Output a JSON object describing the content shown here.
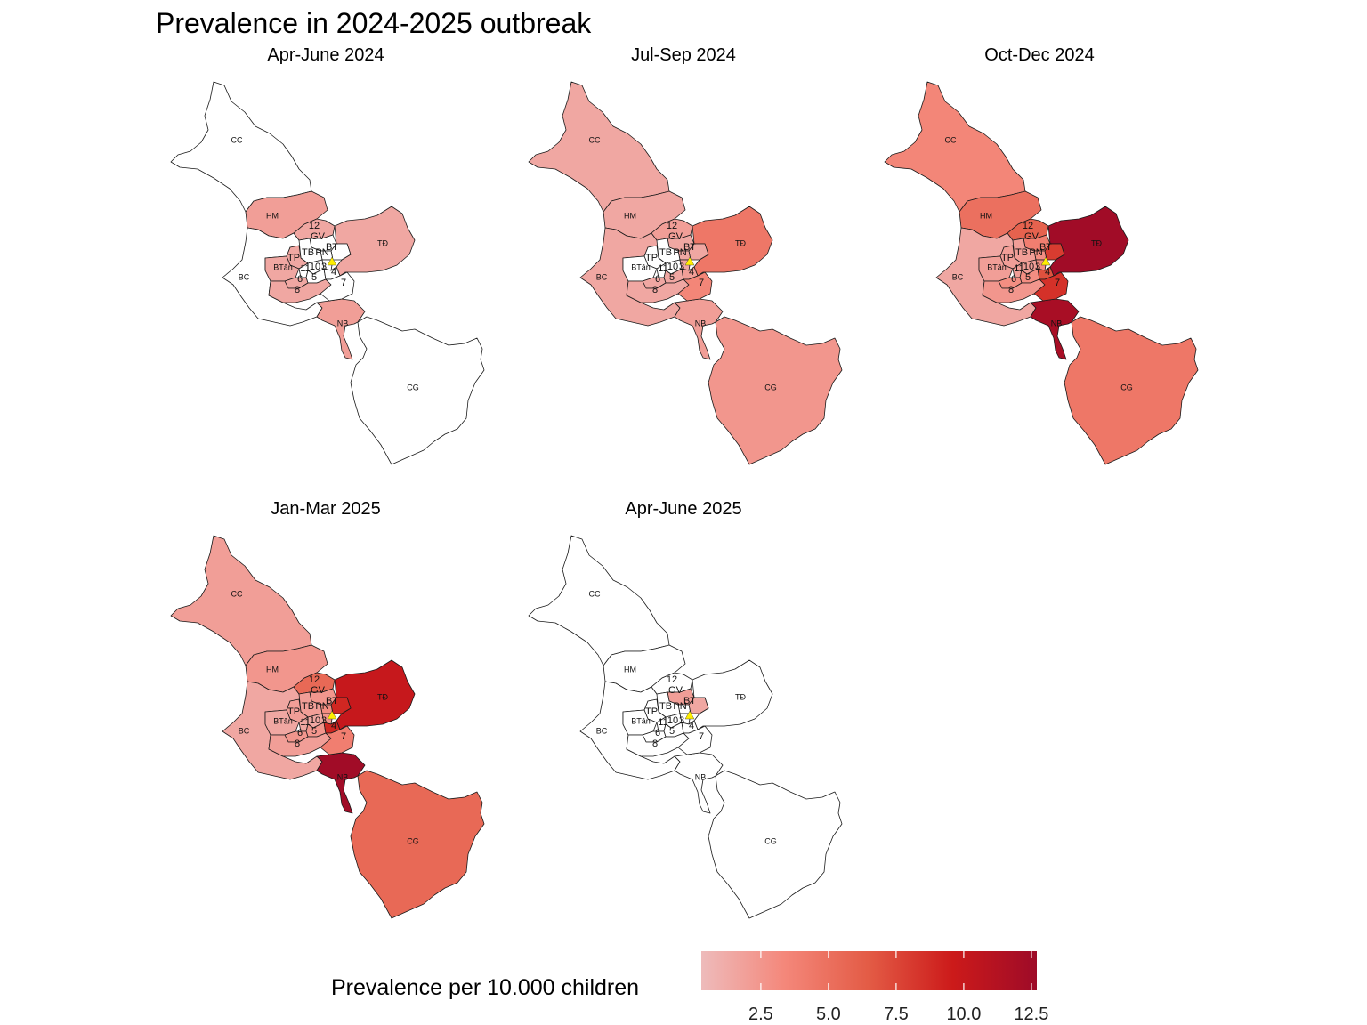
{
  "title": "Prevalence in 2024-2025 outbreak",
  "legend": {
    "title": "Prevalence per 10.000 children",
    "min": 0.3,
    "max": 12.7,
    "ticks": [
      {
        "value": 2.5,
        "label": "2.5"
      },
      {
        "value": 5.0,
        "label": "5.0"
      },
      {
        "value": 7.5,
        "label": "7.5"
      },
      {
        "value": 10.0,
        "label": "10.0"
      },
      {
        "value": 12.5,
        "label": "12.5"
      }
    ],
    "colors": [
      "#eebbbb",
      "#f4877a",
      "#e35b45",
      "#cc1a1a",
      "#9e0b28"
    ]
  },
  "district_labels": {
    "CC": "CC",
    "HM": "HM",
    "D12": "12",
    "GV": "GV",
    "BT": "BT",
    "PN": "PN",
    "TB": "TB",
    "TP": "TP",
    "BTan": "BTân",
    "BC": "BC",
    "D10": "10",
    "D3": "3",
    "D11": "11",
    "D5": "5",
    "D6": "6",
    "D8": "8",
    "D4": "4",
    "D7": "7",
    "TD": "TĐ",
    "NB": "NB",
    "CG": "CG"
  },
  "panels": [
    {
      "title": "Apr-June 2024",
      "values": {
        "CC": 0,
        "HM": 2,
        "D12": 1.5,
        "GV": 0,
        "BT": 0,
        "PN": 0,
        "TB": 0,
        "TP": 1.5,
        "BTan": 1.5,
        "BC": 0,
        "D10": 0,
        "D3": 0,
        "D11": 0,
        "D5": 0,
        "D6": 1.5,
        "D8": 1.5,
        "D4": 0,
        "D7": 0,
        "TD": 1.5,
        "NB": 2,
        "CG": 0
      }
    },
    {
      "title": "Jul-Sep 2024",
      "values": {
        "CC": 1.5,
        "HM": 1.5,
        "D12": 2,
        "GV": 1.5,
        "BT": 1.5,
        "PN": 1.5,
        "TB": 0,
        "TP": 0,
        "BTan": 0,
        "BC": 1.5,
        "D10": 0,
        "D3": 1.5,
        "D11": 0,
        "D5": 1.5,
        "D6": 1.5,
        "D8": 1.5,
        "D4": 2,
        "D7": 3.5,
        "TD": 4.5,
        "NB": 2,
        "CG": 2.5
      }
    },
    {
      "title": "Oct-Dec 2024",
      "values": {
        "CC": 3.5,
        "HM": 5,
        "D12": 6,
        "GV": 4,
        "BT": 8,
        "PN": 3,
        "TB": 2,
        "TP": 2,
        "BTan": 2,
        "BC": 1.5,
        "D10": 2,
        "D3": 3,
        "D11": 2,
        "D5": 3,
        "D6": 3,
        "D8": 2.5,
        "D4": 7,
        "D7": 8.5,
        "TD": 12.5,
        "NB": 12,
        "CG": 4.5
      }
    },
    {
      "title": "Jan-Mar 2025",
      "values": {
        "CC": 2,
        "HM": 2.5,
        "D12": 5.5,
        "GV": 2.5,
        "BT": 9,
        "PN": 3,
        "TB": 2,
        "TP": 2,
        "BTan": 1.5,
        "BC": 1.5,
        "D10": 1.5,
        "D3": 2.5,
        "D11": 1.5,
        "D5": 2.5,
        "D6": 2.5,
        "D8": 2,
        "D4": 9,
        "D7": 4,
        "TD": 10,
        "NB": 12.5,
        "CG": 5.5
      }
    },
    {
      "title": "Apr-June 2025",
      "values": {
        "CC": 0,
        "HM": 0,
        "D12": 0,
        "GV": 2,
        "BT": 1.5,
        "PN": 0,
        "TB": 0,
        "TP": 0,
        "BTan": 0,
        "BC": 0,
        "D10": 0,
        "D3": 0,
        "D11": 0,
        "D5": 0,
        "D6": 0,
        "D8": 0,
        "D4": 0,
        "D7": 0,
        "TD": 0,
        "NB": 0,
        "CG": 0
      }
    }
  ]
}
